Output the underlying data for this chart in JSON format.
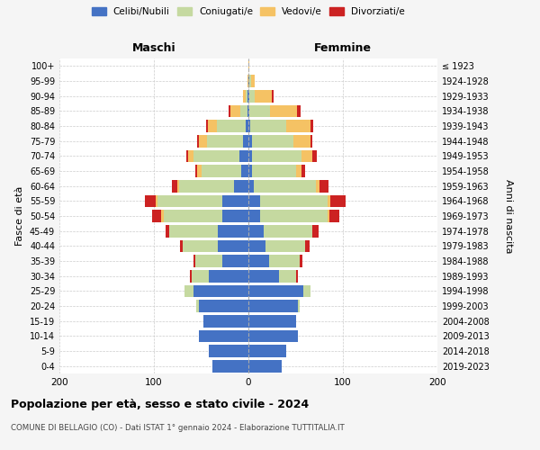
{
  "age_groups": [
    "0-4",
    "5-9",
    "10-14",
    "15-19",
    "20-24",
    "25-29",
    "30-34",
    "35-39",
    "40-44",
    "45-49",
    "50-54",
    "55-59",
    "60-64",
    "65-69",
    "70-74",
    "75-79",
    "80-84",
    "85-89",
    "90-94",
    "95-99",
    "100+"
  ],
  "birth_years": [
    "2019-2023",
    "2014-2018",
    "2009-2013",
    "2004-2008",
    "1999-2003",
    "1994-1998",
    "1989-1993",
    "1984-1988",
    "1979-1983",
    "1974-1978",
    "1969-1973",
    "1964-1968",
    "1959-1963",
    "1954-1958",
    "1949-1953",
    "1944-1948",
    "1939-1943",
    "1934-1938",
    "1929-1933",
    "1924-1928",
    "≤ 1923"
  ],
  "colors": {
    "celibi": "#4472C4",
    "coniugati": "#c5d9a0",
    "vedovi": "#f5c264",
    "divorziati": "#cc2222"
  },
  "maschi": {
    "celibi": [
      38,
      42,
      52,
      48,
      52,
      58,
      42,
      28,
      32,
      32,
      28,
      28,
      15,
      8,
      10,
      6,
      3,
      1,
      1,
      0,
      0
    ],
    "coniugati": [
      0,
      0,
      0,
      0,
      3,
      10,
      18,
      28,
      38,
      52,
      62,
      68,
      58,
      42,
      48,
      38,
      30,
      8,
      2,
      0,
      0
    ],
    "vedovi": [
      0,
      0,
      0,
      0,
      0,
      0,
      0,
      0,
      0,
      0,
      2,
      2,
      2,
      4,
      6,
      8,
      10,
      10,
      3,
      1,
      0
    ],
    "divorziati": [
      0,
      0,
      0,
      0,
      0,
      0,
      2,
      2,
      2,
      4,
      10,
      12,
      6,
      2,
      2,
      2,
      2,
      2,
      0,
      0,
      0
    ]
  },
  "femmine": {
    "celibi": [
      35,
      40,
      52,
      50,
      52,
      58,
      32,
      22,
      18,
      16,
      12,
      12,
      6,
      4,
      4,
      4,
      2,
      1,
      1,
      1,
      0
    ],
    "coniugati": [
      0,
      0,
      0,
      0,
      2,
      8,
      18,
      32,
      42,
      52,
      72,
      72,
      65,
      46,
      52,
      44,
      38,
      22,
      6,
      2,
      0
    ],
    "vedovi": [
      0,
      0,
      0,
      0,
      0,
      0,
      0,
      0,
      0,
      0,
      2,
      3,
      4,
      6,
      12,
      18,
      26,
      28,
      18,
      4,
      1
    ],
    "divorziati": [
      0,
      0,
      0,
      0,
      0,
      0,
      2,
      3,
      5,
      6,
      10,
      16,
      10,
      4,
      4,
      2,
      3,
      4,
      2,
      0,
      0
    ]
  },
  "title": "Popolazione per età, sesso e stato civile - 2024",
  "subtitle": "COMUNE DI BELLAGIO (CO) - Dati ISTAT 1° gennaio 2024 - Elaborazione TUTTITALIA.IT",
  "xlabel_left": "Maschi",
  "xlabel_right": "Femmine",
  "ylabel_left": "Fasce di età",
  "ylabel_right": "Anni di nascita",
  "xlim": 200,
  "legend_labels": [
    "Celibi/Nubili",
    "Coniugati/e",
    "Vedovi/e",
    "Divorziati/e"
  ],
  "bg_color": "#f5f5f5",
  "plot_bg": "#ffffff"
}
